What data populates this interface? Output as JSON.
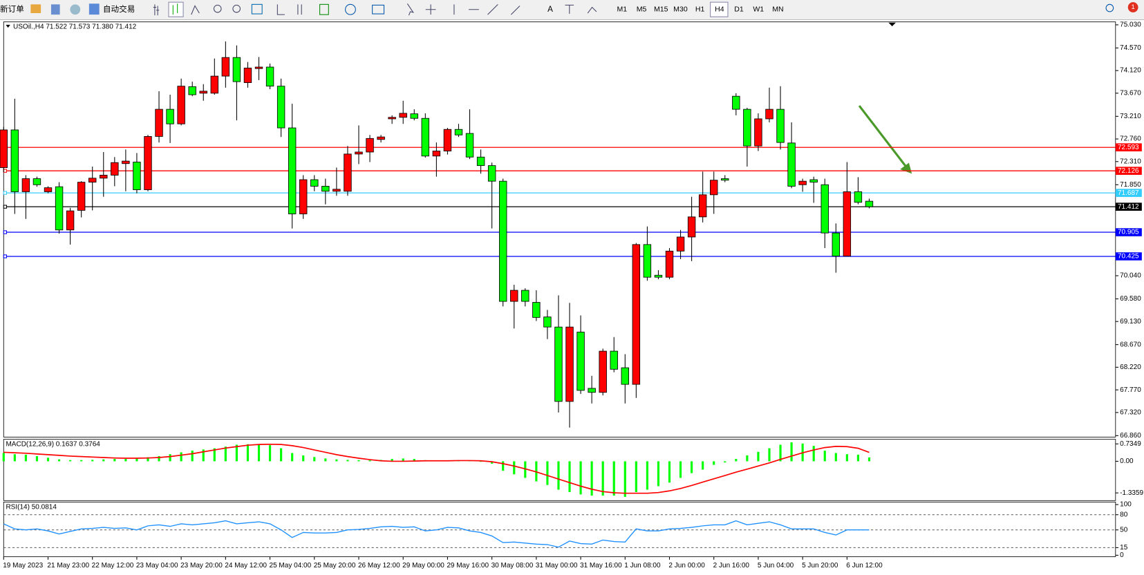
{
  "toolbar": {
    "buttons": [
      "新订单",
      "自动交易"
    ],
    "timeframes": [
      "M1",
      "M5",
      "M15",
      "M30",
      "H1",
      "H4",
      "D1",
      "W1",
      "MN"
    ],
    "notification": "1"
  },
  "chart_data": [
    {
      "type": "candlestick",
      "title": "USOil.,H4  71.522 71.573 71.380 71.412",
      "up_color": "#ff0000",
      "down_color": "#00ff00",
      "categories": [
        "19 May 2023",
        null,
        null,
        null,
        "21 May 23:00",
        null,
        null,
        null,
        "22 May 12:00",
        null,
        null,
        null,
        "23 May 04:00",
        null,
        null,
        null,
        "23 May 20:00",
        null,
        null,
        null,
        "24 May 12:00",
        null,
        null,
        null,
        "25 May 04:00",
        null,
        null,
        null,
        "25 May 20:00",
        null,
        null,
        null,
        "26 May 12:00",
        null,
        null,
        null,
        "29 May 00:00",
        null,
        null,
        null,
        "29 May 16:00",
        null,
        null,
        null,
        "30 May 08:00",
        null,
        null,
        null,
        "31 May 00:00",
        null,
        null,
        null,
        "31 May 16:00",
        null,
        null,
        null,
        "1 Jun 08:00",
        null,
        null,
        null,
        "2 Jun 00:00",
        null,
        null,
        null,
        "2 Jun 16:00",
        null,
        null,
        null,
        "5 Jun 04:00",
        null,
        null,
        null,
        "5 Jun 20:00",
        null,
        null,
        null,
        "6 Jun 12:00",
        null,
        null
      ],
      "open": [
        72.19,
        72.94,
        71.71,
        71.97,
        71.71,
        71.81,
        70.95,
        71.34,
        71.9,
        71.98,
        72.04,
        72.27,
        72.3,
        71.75,
        72.81,
        73.35,
        73.06,
        73.8,
        73.67,
        73.67,
        74.01,
        74.38,
        73.88,
        74.16,
        74.19,
        73.81,
        72.98,
        71.27,
        71.95,
        71.82,
        71.72,
        71.72,
        72.46,
        72.5,
        72.75,
        73.16,
        73.19,
        73.26,
        73.17,
        72.42,
        72.52,
        72.95,
        72.87,
        72.4,
        72.23,
        71.92,
        69.53,
        69.75,
        69.51,
        69.22,
        69.02,
        67.54,
        68.92,
        67.8,
        67.72,
        68.54,
        68.21,
        67.88,
        70.66,
        70.05,
        70.01,
        70.53,
        70.81,
        71.21,
        71.65,
        71.97,
        73.61,
        73.35,
        72.62,
        73.16,
        73.35,
        72.68,
        71.85,
        71.95,
        71.85,
        70.89,
        70.43,
        71.71,
        71.522
      ],
      "high": [
        73.0,
        73.56,
        72.04,
        72.01,
        71.82,
        71.9,
        71.39,
        71.92,
        72.21,
        72.5,
        72.4,
        72.55,
        72.48,
        72.84,
        73.71,
        73.64,
        73.96,
        73.9,
        73.85,
        74.36,
        74.7,
        74.62,
        74.29,
        74.39,
        74.26,
        73.96,
        73.46,
        72.04,
        72.04,
        71.97,
        72.19,
        72.62,
        73.03,
        72.84,
        72.84,
        73.23,
        73.52,
        73.35,
        73.27,
        72.69,
        72.98,
        73.06,
        73.35,
        72.55,
        72.29,
        71.97,
        69.86,
        69.79,
        69.75,
        69.36,
        69.65,
        69.5,
        69.25,
        68.05,
        68.59,
        68.82,
        68.48,
        70.69,
        71.02,
        70.15,
        70.59,
        70.95,
        71.61,
        72.11,
        72.11,
        72.04,
        73.67,
        73.38,
        73.27,
        73.78,
        73.81,
        73.09,
        71.97,
        72.01,
        71.97,
        71.08,
        72.3,
        72.0,
        71.573
      ],
      "low": [
        72.1,
        71.27,
        71.17,
        71.81,
        71.68,
        70.88,
        70.66,
        71.2,
        71.34,
        71.61,
        71.82,
        71.72,
        71.68,
        71.72,
        72.69,
        72.68,
        73.03,
        73.61,
        73.52,
        73.64,
        73.78,
        73.13,
        73.78,
        73.93,
        73.75,
        72.8,
        70.98,
        71.17,
        71.72,
        71.46,
        71.63,
        71.63,
        72.26,
        72.3,
        72.69,
        73.06,
        73.06,
        73.13,
        72.39,
        72.01,
        72.45,
        72.8,
        72.36,
        72.07,
        70.98,
        69.43,
        68.99,
        69.43,
        69.14,
        68.78,
        67.32,
        67.02,
        67.69,
        67.5,
        67.66,
        68.12,
        67.5,
        67.61,
        69.94,
        69.97,
        69.97,
        70.37,
        70.33,
        71.1,
        71.27,
        71.9,
        73.23,
        72.21,
        72.52,
        73.09,
        72.55,
        71.78,
        71.71,
        71.49,
        70.59,
        70.1,
        70.43,
        71.46,
        71.38
      ],
      "close": [
        72.94,
        71.71,
        71.97,
        71.85,
        71.79,
        70.95,
        71.33,
        71.9,
        71.98,
        72.04,
        72.29,
        72.32,
        71.75,
        72.81,
        73.35,
        73.06,
        73.81,
        73.64,
        73.71,
        74.01,
        74.38,
        73.9,
        74.17,
        74.19,
        73.81,
        72.98,
        71.27,
        71.95,
        71.82,
        71.72,
        71.76,
        72.46,
        72.5,
        72.77,
        72.8,
        73.19,
        73.27,
        73.17,
        72.42,
        72.52,
        72.95,
        72.84,
        72.4,
        72.23,
        71.92,
        69.53,
        69.75,
        69.53,
        69.21,
        69.02,
        67.54,
        69.02,
        67.76,
        67.72,
        68.54,
        68.18,
        67.88,
        70.66,
        70.01,
        70.01,
        70.53,
        70.81,
        71.21,
        71.65,
        71.94,
        71.94,
        73.35,
        72.62,
        73.16,
        73.35,
        72.69,
        71.82,
        71.92,
        71.9,
        70.89,
        70.43,
        71.71,
        71.5,
        71.412
      ],
      "ylim": [
        66.86,
        75.03
      ],
      "yticks": [
        {
          "value": 75.03,
          "label": "75.030"
        },
        {
          "value": 74.57,
          "label": "74.570"
        },
        {
          "value": 74.12,
          "label": "74.120"
        },
        {
          "value": 73.67,
          "label": "73.670"
        },
        {
          "value": 73.21,
          "label": "73.210"
        },
        {
          "value": 72.76,
          "label": "72.760"
        },
        {
          "value": 72.31,
          "label": "72.310"
        },
        {
          "value": 71.85,
          "label": "71.850"
        },
        {
          "value": 70.04,
          "label": "70.040"
        },
        {
          "value": 69.58,
          "label": "69.580"
        },
        {
          "value": 69.13,
          "label": "69.130"
        },
        {
          "value": 68.67,
          "label": "68.670"
        },
        {
          "value": 68.22,
          "label": "68.220"
        },
        {
          "value": 67.77,
          "label": "67.770"
        },
        {
          "value": 67.32,
          "label": "67.320"
        },
        {
          "value": 66.86,
          "label": "66.860"
        }
      ],
      "levels": [
        {
          "value": 72.593,
          "color": "#ff0000"
        },
        {
          "value": 72.126,
          "color": "#ff0000"
        },
        {
          "value": 71.687,
          "color": "#33ccff"
        },
        {
          "value": 71.412,
          "color": "#000000"
        },
        {
          "value": 70.905,
          "color": "#0000ff"
        },
        {
          "value": 70.425,
          "color": "#0000ff"
        }
      ]
    },
    {
      "type": "macd",
      "title": "MACD(12,26,9) 0.1637 0.3764",
      "ylim": [
        -1.66,
        0.93
      ],
      "yticks": [
        0.7349,
        {
          "value": 0,
          "label": "0.00"
        },
        -1.3359
      ],
      "histogram": {
        "color": "#00ff00",
        "values": [
          0.35,
          0.3,
          0.28,
          0.22,
          0.15,
          0.08,
          0.05,
          0.05,
          0.06,
          0.08,
          0.1,
          0.1,
          0.12,
          0.17,
          0.22,
          0.3,
          0.38,
          0.45,
          0.5,
          0.55,
          0.62,
          0.7,
          0.72,
          0.7,
          0.68,
          0.55,
          0.35,
          0.25,
          0.18,
          0.12,
          0.08,
          0.06,
          0.05,
          0.04,
          0.06,
          0.1,
          0.12,
          0.1,
          0.05,
          0.04,
          0.04,
          0.04,
          0.02,
          -0.02,
          -0.1,
          -0.4,
          -0.55,
          -0.7,
          -0.85,
          -1.0,
          -1.2,
          -1.3,
          -1.4,
          -1.45,
          -1.45,
          -1.45,
          -1.5,
          -1.3,
          -1.2,
          -1.05,
          -0.9,
          -0.7,
          -0.5,
          -0.35,
          -0.15,
          -0.05,
          0.1,
          0.25,
          0.4,
          0.55,
          0.7,
          0.8,
          0.75,
          0.65,
          0.45,
          0.35,
          0.3,
          0.28,
          0.1637
        ]
      },
      "signal": {
        "color": "#ff0000",
        "values": [
          0.38,
          0.36,
          0.34,
          0.31,
          0.28,
          0.25,
          0.22,
          0.2,
          0.18,
          0.16,
          0.14,
          0.13,
          0.13,
          0.14,
          0.16,
          0.2,
          0.26,
          0.32,
          0.4,
          0.48,
          0.56,
          0.62,
          0.68,
          0.71,
          0.72,
          0.71,
          0.66,
          0.58,
          0.48,
          0.38,
          0.28,
          0.2,
          0.13,
          0.07,
          0.02,
          0.0,
          0.0,
          0.01,
          0.02,
          0.02,
          0.02,
          0.03,
          0.03,
          0.02,
          -0.02,
          -0.1,
          -0.2,
          -0.32,
          -0.45,
          -0.6,
          -0.75,
          -0.9,
          -1.05,
          -1.18,
          -1.28,
          -1.33,
          -1.35,
          -1.35,
          -1.35,
          -1.32,
          -1.25,
          -1.15,
          -1.02,
          -0.88,
          -0.74,
          -0.6,
          -0.46,
          -0.33,
          -0.2,
          -0.07,
          0.08,
          0.22,
          0.36,
          0.48,
          0.58,
          0.63,
          0.62,
          0.55,
          0.3764
        ]
      }
    },
    {
      "type": "rsi",
      "title": "RSI(14) 50.0814",
      "ylim": [
        -3,
        105
      ],
      "yticks": [
        100,
        80,
        50,
        15,
        0
      ],
      "levels": [
        80,
        50,
        15
      ],
      "color": "#1e90ff",
      "values": [
        62,
        52,
        50,
        52,
        48,
        42,
        47,
        52,
        53,
        55,
        53,
        54,
        50,
        58,
        60,
        57,
        62,
        60,
        62,
        64,
        68,
        62,
        64,
        66,
        62,
        50,
        35,
        45,
        44,
        44,
        45,
        50,
        51,
        53,
        56,
        57,
        55,
        56,
        48,
        50,
        55,
        54,
        48,
        45,
        38,
        25,
        26,
        24,
        22,
        21,
        16,
        28,
        23,
        22,
        30,
        27,
        26,
        52,
        48,
        48,
        52,
        53,
        55,
        58,
        60,
        60,
        68,
        60,
        63,
        66,
        60,
        52,
        52,
        52,
        45,
        40,
        50,
        50,
        50.0814
      ]
    }
  ]
}
